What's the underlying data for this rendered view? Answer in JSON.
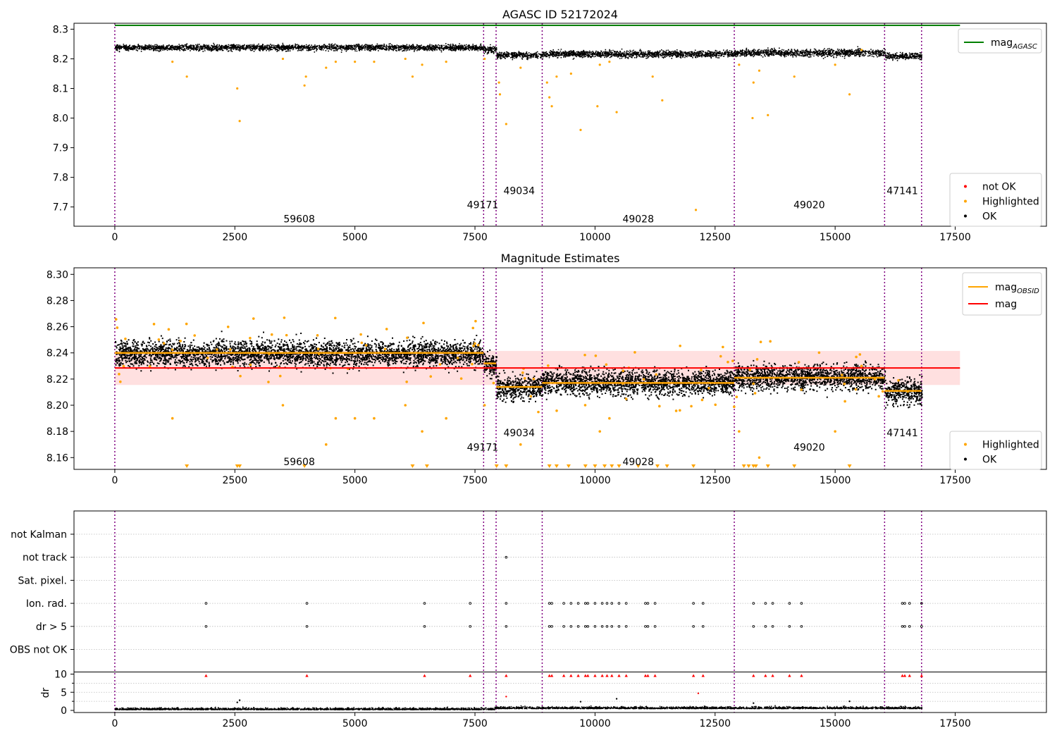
{
  "chart_data": [
    {
      "type": "scatter",
      "title": "AGASC ID 52172024",
      "xlabel": "",
      "ylabel": "",
      "xlim": [
        -850,
        19400
      ],
      "ylim": [
        7.635,
        8.32
      ],
      "xticks": [
        0,
        2500,
        5000,
        7500,
        10000,
        12500,
        15000,
        17500
      ],
      "yticks": [
        7.7,
        7.8,
        7.9,
        8.0,
        8.1,
        8.2,
        8.3
      ],
      "grid": false,
      "legend_top": {
        "position": "top-right",
        "entries": [
          {
            "label": "mag",
            "sub": "AGASC",
            "color": "#008000",
            "marker": "line"
          }
        ]
      },
      "legend_bottom": {
        "position": "lower-right",
        "entries": [
          {
            "label": "not OK",
            "color": "#ff0000",
            "marker": "dot"
          },
          {
            "label": "Highlighted",
            "color": "#ffa500",
            "marker": "dot"
          },
          {
            "label": "OK",
            "color": "#000000",
            "marker": "dot"
          }
        ]
      },
      "mag_agasc": 8.313,
      "obsid_boundaries": [
        0,
        7680,
        7940,
        8900,
        12900,
        16030,
        16800
      ],
      "obsid_labels": [
        {
          "text": "59608",
          "x": 3840,
          "y": 7.66
        },
        {
          "text": "49171",
          "x": 7660,
          "y": 7.708
        },
        {
          "text": "49034",
          "x": 8420,
          "y": 7.755
        },
        {
          "text": "49028",
          "x": 10900,
          "y": 7.66
        },
        {
          "text": "49020",
          "x": 14460,
          "y": 7.708
        },
        {
          "text": "47141",
          "x": 16400,
          "y": 7.755
        }
      ],
      "segments": [
        {
          "x0": 0,
          "x1": 7680,
          "mean": 8.24,
          "spread": 0.009
        },
        {
          "x0": 7680,
          "x1": 7940,
          "mean": 8.232,
          "spread": 0.01
        },
        {
          "x0": 7940,
          "x1": 8900,
          "mean": 8.214,
          "spread": 0.01
        },
        {
          "x0": 8900,
          "x1": 12900,
          "mean": 8.218,
          "spread": 0.01
        },
        {
          "x0": 12900,
          "x1": 16030,
          "mean": 8.222,
          "spread": 0.011
        },
        {
          "x0": 16030,
          "x1": 16800,
          "mean": 8.211,
          "spread": 0.01
        }
      ],
      "highlighted": [
        [
          1200,
          8.19
        ],
        [
          1500,
          8.14
        ],
        [
          2550,
          8.1
        ],
        [
          2600,
          7.99
        ],
        [
          3500,
          8.2
        ],
        [
          3950,
          8.11
        ],
        [
          3980,
          8.14
        ],
        [
          4400,
          8.17
        ],
        [
          4600,
          8.19
        ],
        [
          5000,
          8.19
        ],
        [
          5400,
          8.19
        ],
        [
          6050,
          8.2
        ],
        [
          6200,
          8.14
        ],
        [
          6400,
          8.18
        ],
        [
          6900,
          8.19
        ],
        [
          7700,
          8.2
        ],
        [
          8000,
          8.12
        ],
        [
          8020,
          8.08
        ],
        [
          8150,
          7.98
        ],
        [
          8450,
          8.17
        ],
        [
          9000,
          8.12
        ],
        [
          9050,
          8.07
        ],
        [
          9100,
          8.04
        ],
        [
          9200,
          8.14
        ],
        [
          9500,
          8.15
        ],
        [
          9700,
          7.96
        ],
        [
          10050,
          8.04
        ],
        [
          10100,
          8.18
        ],
        [
          10300,
          8.19
        ],
        [
          10450,
          8.02
        ],
        [
          11200,
          8.14
        ],
        [
          11400,
          8.06
        ],
        [
          12100,
          7.69
        ],
        [
          13000,
          8.18
        ],
        [
          13300,
          8.12
        ],
        [
          13280,
          8.0
        ],
        [
          13420,
          8.16
        ],
        [
          13600,
          8.01
        ],
        [
          14150,
          8.14
        ],
        [
          15000,
          8.18
        ],
        [
          15300,
          8.08
        ],
        [
          15550,
          8.23
        ]
      ]
    },
    {
      "type": "scatter",
      "title": "Magnitude Estimates",
      "xlabel": "",
      "ylabel": "",
      "xlim": [
        -850,
        19400
      ],
      "ylim": [
        8.151,
        8.305
      ],
      "xticks": [
        0,
        2500,
        5000,
        7500,
        10000,
        12500,
        15000,
        17500
      ],
      "yticks": [
        8.16,
        8.18,
        8.2,
        8.22,
        8.24,
        8.26,
        8.28,
        8.3
      ],
      "grid": false,
      "legend_top": {
        "position": "top-right",
        "entries": [
          {
            "label": "mag",
            "sub": "OBSID",
            "color": "#ffa500",
            "marker": "line"
          },
          {
            "label": "mag",
            "color": "#ff0000",
            "marker": "line"
          }
        ]
      },
      "legend_bottom": {
        "position": "lower-right",
        "entries": [
          {
            "label": "Highlighted",
            "color": "#ffa500",
            "marker": "dot"
          },
          {
            "label": "OK",
            "color": "#000000",
            "marker": "dot"
          }
        ]
      },
      "mag": 8.2285,
      "mag_band": [
        8.2155,
        8.2415
      ],
      "obsid_labels": [
        {
          "text": "59608",
          "x": 3840,
          "y": 8.157
        },
        {
          "text": "49171",
          "x": 7660,
          "y": 8.168
        },
        {
          "text": "49034",
          "x": 8420,
          "y": 8.179
        },
        {
          "text": "49028",
          "x": 10900,
          "y": 8.157
        },
        {
          "text": "49020",
          "x": 14460,
          "y": 8.168
        },
        {
          "text": "47141",
          "x": 16400,
          "y": 8.179
        }
      ],
      "segment_means": [
        {
          "x0": 0,
          "x1": 7680,
          "y": 8.24
        },
        {
          "x0": 7680,
          "x1": 7940,
          "y": 8.232
        },
        {
          "x0": 7940,
          "x1": 8900,
          "y": 8.214
        },
        {
          "x0": 8900,
          "x1": 12900,
          "y": 8.217
        },
        {
          "x0": 12900,
          "x1": 16030,
          "y": 8.221
        },
        {
          "x0": 16030,
          "x1": 16800,
          "y": 8.211
        }
      ],
      "offscale_x": [
        1500,
        2550,
        2600,
        3950,
        6200,
        6500,
        7950,
        8150,
        9050,
        9200,
        9450,
        9800,
        10000,
        10200,
        10350,
        10500,
        10900,
        11300,
        11500,
        12050,
        13100,
        13200,
        13300,
        13350,
        13600,
        14150,
        15300
      ]
    },
    {
      "type": "scatter",
      "title": "",
      "xlabel": "",
      "ylabel": "",
      "xlim": [
        -850,
        19400
      ],
      "xticks": [
        0,
        2500,
        5000,
        7500,
        10000,
        12500,
        15000,
        17500
      ],
      "flag_rows": [
        "not Kalman",
        "not track",
        "Sat. pixel.",
        "Ion. rad.",
        "dr > 5",
        "OBS not OK"
      ],
      "flag_events": {
        "not track": [
          8150
        ],
        "Ion. rad.": [
          1900,
          4000,
          6450,
          7400,
          8150,
          9050,
          9100,
          9350,
          9500,
          9650,
          9800,
          9850,
          10000,
          10150,
          10250,
          10350,
          10500,
          10650,
          11050,
          11100,
          11250,
          12050,
          12250,
          13300,
          13550,
          13700,
          14050,
          14300,
          16400,
          16450,
          16550,
          16800
        ],
        "dr > 5": [
          1900,
          4000,
          6450,
          7400,
          8150,
          9050,
          9100,
          9350,
          9500,
          9650,
          9800,
          9850,
          10000,
          10150,
          10250,
          10350,
          10500,
          10650,
          11050,
          11100,
          11250,
          12050,
          12250,
          13300,
          13550,
          13700,
          14050,
          14300,
          16400,
          16450,
          16550,
          16800
        ]
      },
      "dr": {
        "ylabel": "dr",
        "yticks": [
          0,
          5,
          10
        ],
        "ylim": [
          -0.3,
          10.2
        ],
        "clipped_x": [
          1900,
          4000,
          6450,
          7400,
          8150,
          9050,
          9100,
          9350,
          9500,
          9650,
          9800,
          9850,
          10000,
          10150,
          10250,
          10350,
          10500,
          10650,
          11050,
          11100,
          11250,
          12050,
          12250,
          13300,
          13550,
          13700,
          14050,
          14300,
          16400,
          16450,
          16550,
          16800
        ],
        "outliers": [
          [
            2550,
            2.2
          ],
          [
            2600,
            2.8
          ],
          [
            8150,
            3.8
          ],
          [
            9700,
            2.4
          ],
          [
            10450,
            3.2
          ],
          [
            12150,
            4.7
          ],
          [
            13300,
            2.0
          ],
          [
            15300,
            2.5
          ]
        ]
      }
    }
  ]
}
